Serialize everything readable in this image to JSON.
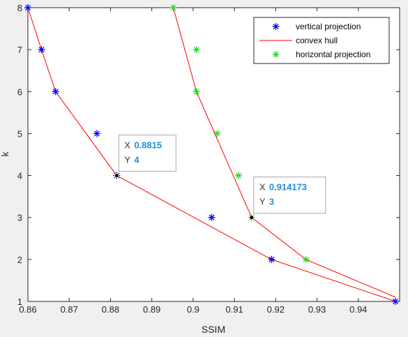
{
  "chart_data": {
    "type": "scatter",
    "xlabel": "SSIM",
    "ylabel": "k",
    "xlim": [
      0.86,
      0.95
    ],
    "ylim": [
      1,
      8
    ],
    "x_ticks": [
      "0.86",
      "0.87",
      "0.88",
      "0.89",
      "0.9",
      "0.91",
      "0.92",
      "0.93",
      "0.94"
    ],
    "y_ticks": [
      "1",
      "2",
      "3",
      "4",
      "5",
      "6",
      "7",
      "8"
    ],
    "grid": false,
    "box": true,
    "legend_position": "top-right",
    "series": [
      {
        "name": "vertical projection",
        "kind": "marker",
        "marker": "asterisk",
        "color": "#0000ff",
        "points": [
          {
            "x": 0.86,
            "y": 8
          },
          {
            "x": 0.8633,
            "y": 7
          },
          {
            "x": 0.8667,
            "y": 6
          },
          {
            "x": 0.8767,
            "y": 5
          },
          {
            "x": 0.8815,
            "y": 4
          },
          {
            "x": 0.9045,
            "y": 3
          },
          {
            "x": 0.919,
            "y": 2
          },
          {
            "x": 0.949,
            "y": 1
          }
        ]
      },
      {
        "name": "convex hull",
        "kind": "line",
        "color": "#ff0000",
        "paths": [
          [
            {
              "x": 0.86,
              "y": 8
            },
            {
              "x": 0.8633,
              "y": 7
            },
            {
              "x": 0.8667,
              "y": 6
            },
            {
              "x": 0.8815,
              "y": 4
            },
            {
              "x": 0.919,
              "y": 2
            },
            {
              "x": 0.949,
              "y": 1
            }
          ],
          [
            {
              "x": 0.8952,
              "y": 8
            },
            {
              "x": 0.9008,
              "y": 6
            },
            {
              "x": 0.914173,
              "y": 3
            },
            {
              "x": 0.9273,
              "y": 2
            },
            {
              "x": 0.949,
              "y": 1.1
            }
          ]
        ]
      },
      {
        "name": "horizontal projection",
        "kind": "marker",
        "marker": "asterisk",
        "color": "#22dd22",
        "points": [
          {
            "x": 0.8952,
            "y": 8
          },
          {
            "x": 0.9008,
            "y": 7
          },
          {
            "x": 0.9008,
            "y": 6
          },
          {
            "x": 0.9058,
            "y": 5
          },
          {
            "x": 0.911,
            "y": 4
          },
          {
            "x": 0.914173,
            "y": 3
          },
          {
            "x": 0.9273,
            "y": 2
          }
        ]
      }
    ],
    "datatips": [
      {
        "x_label": "X",
        "x_value": "0.8815",
        "y_label": "Y",
        "y_value": "4",
        "x": 0.8815,
        "y": 4
      },
      {
        "x_label": "X",
        "x_value": "0.914173",
        "y_label": "Y",
        "y_value": "3",
        "x": 0.914173,
        "y": 3
      }
    ]
  }
}
